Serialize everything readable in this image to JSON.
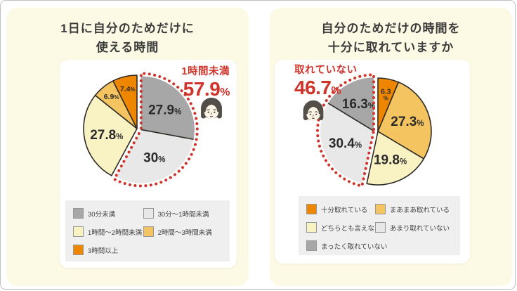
{
  "page": {
    "bg": "#ffffff",
    "panel_bg": "#fcf9e4",
    "card_bg": "#ffffff",
    "legend_bg": "#efefef",
    "accent_red": "#cf342b",
    "text_dark": "#3b3b3b",
    "slice_stroke": "#2d2a26",
    "percent_sign": "%"
  },
  "chart_data": [
    {
      "type": "pie",
      "title_line1": "1日に自分のためだけに",
      "title_line2": "使える時間",
      "unit": "%",
      "legend_position": "bottom",
      "slices": [
        {
          "label": "30分未満",
          "value": 27.9,
          "display": "27.9",
          "color": "#a7a7a7"
        },
        {
          "label": "30分〜1時間未満",
          "value": 30.0,
          "display": "30",
          "color": "#e8e8e8"
        },
        {
          "label": "1時間〜2時間未満",
          "value": 27.8,
          "display": "27.8",
          "color": "#f9f3c4"
        },
        {
          "label": "2時間〜3時間未満",
          "value": 6.9,
          "display": "6.9",
          "color": "#f3c45f"
        },
        {
          "label": "3時間以上",
          "value": 7.4,
          "display": "7.4",
          "color": "#ee8600"
        }
      ],
      "highlight": {
        "label": "1時間未満",
        "value": "57.9",
        "unit": "%",
        "covers": [
          0,
          1
        ],
        "side": "right"
      }
    },
    {
      "type": "pie",
      "title_line1": "自分のためだけの時間を",
      "title_line2": "十分に取れていますか",
      "unit": "%",
      "legend_position": "bottom",
      "slices": [
        {
          "label": "十分取れている",
          "value": 6.3,
          "display": "6.3",
          "color": "#ee8600",
          "stacked": true
        },
        {
          "label": "まあまあ取れている",
          "value": 27.3,
          "display": "27.3",
          "color": "#f3c45f"
        },
        {
          "label": "どちらとも言えない",
          "value": 19.8,
          "display": "19.8",
          "color": "#f9f3c4"
        },
        {
          "label": "あまり取れていない",
          "value": 30.4,
          "display": "30.4",
          "color": "#e8e8e8"
        },
        {
          "label": "まったく取れていない",
          "value": 16.3,
          "display": "16.3",
          "color": "#a7a7a7"
        }
      ],
      "highlight": {
        "label": "取れていない",
        "value": "46.7",
        "unit": "%",
        "covers": [
          3,
          4
        ],
        "side": "left"
      }
    }
  ]
}
